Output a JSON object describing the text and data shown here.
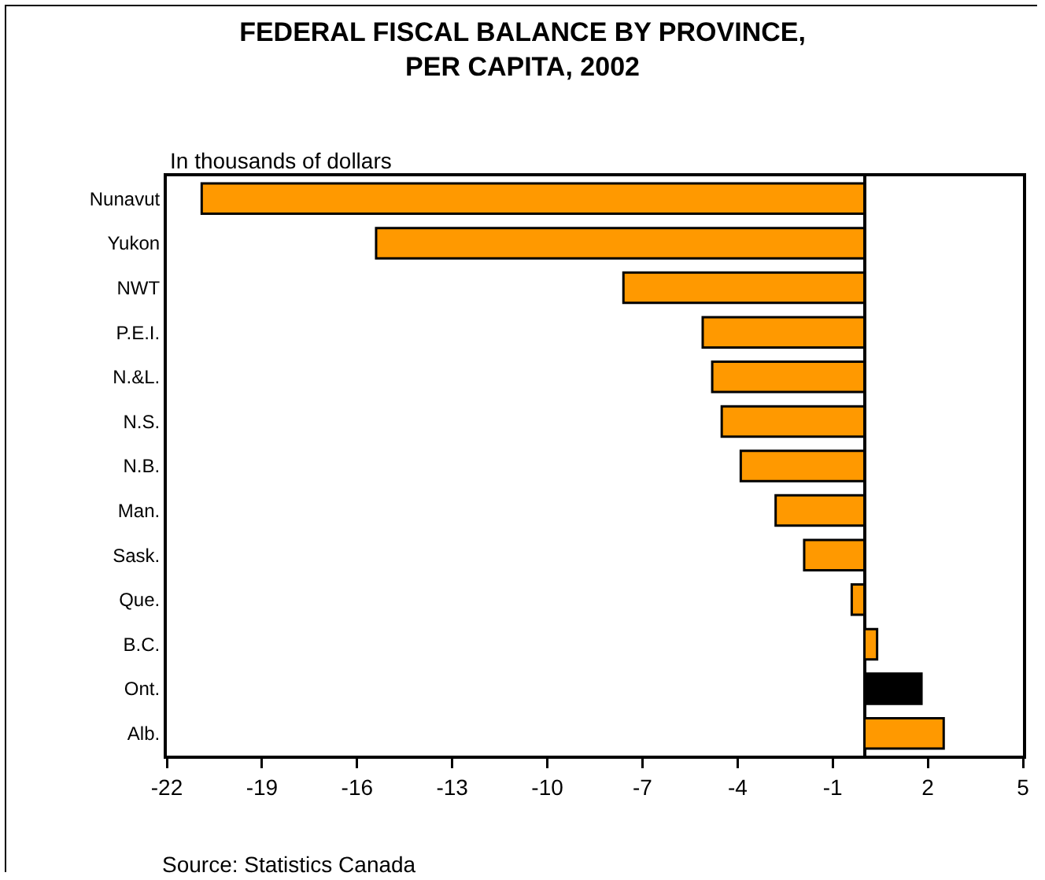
{
  "chart_data": {
    "type": "bar",
    "orientation": "horizontal",
    "title": "FEDERAL FISCAL BALANCE BY PROVINCE,\nPER CAPITA, 2002",
    "xlabel": "In thousands of dollars",
    "categories": [
      "Nunavut",
      "Yukon",
      "NWT",
      "P.E.I.",
      "N.&L.",
      "N.S.",
      "N.B.",
      "Man.",
      "Sask.",
      "Que.",
      "B.C.",
      "Ont.",
      "Alb."
    ],
    "values": [
      -20.9,
      -15.4,
      -7.6,
      -5.1,
      -4.8,
      -4.5,
      -3.9,
      -2.8,
      -1.9,
      -0.4,
      0.4,
      1.8,
      2.5
    ],
    "colors": [
      "#ff9900",
      "#ff9900",
      "#ff9900",
      "#ff9900",
      "#ff9900",
      "#ff9900",
      "#ff9900",
      "#ff9900",
      "#ff9900",
      "#ff9900",
      "#ff9900",
      "#000000",
      "#ff9900"
    ],
    "xlim": [
      -22,
      5
    ],
    "xticks": [
      -22,
      -19,
      -16,
      -13,
      -10,
      -7,
      -4,
      -1,
      2,
      5
    ],
    "annotations": [
      "Source: Statistics Canada"
    ]
  }
}
